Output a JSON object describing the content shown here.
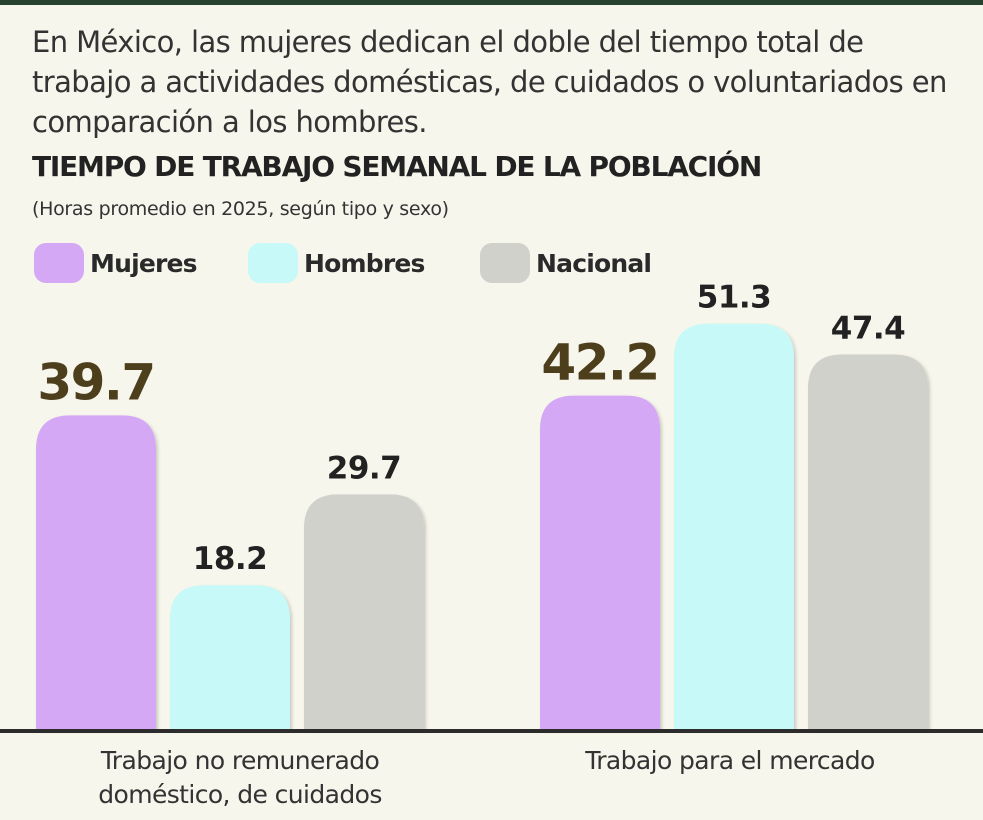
{
  "intro": "En México, las mujeres dedican el doble del tiempo total de trabajo a actividades domésticas, de cuidados o voluntariados en comparación a los hombres.",
  "colors": {
    "background": "#f7f6ec",
    "rule": "#27432f",
    "mujeres": "#d4a8f5",
    "hombres": "#c6f9f7",
    "nacional": "#cfd1ca",
    "highlight_label": "#4d3e1c",
    "label": "#222222"
  },
  "legend": [
    {
      "name": "Mujeres",
      "color": "#d4a8f5"
    },
    {
      "name": "Hombres",
      "color": "#c6f9f7"
    },
    {
      "name": "Nacional",
      "color": "#cfd1ca"
    }
  ],
  "chart_data": {
    "type": "bar",
    "title": "TIEMPO DE TRABAJO SEMANAL DE LA POBLACIÓN",
    "subtitle": "(Horas promedio en 2025, según tipo y sexo)",
    "categories": [
      "Trabajo no remunerado doméstico, de cuidados",
      "Trabajo para el mercado"
    ],
    "series": [
      {
        "name": "Mujeres",
        "values": [
          39.7,
          42.2
        ]
      },
      {
        "name": "Hombres",
        "values": [
          18.2,
          51.3
        ]
      },
      {
        "name": "Nacional",
        "values": [
          29.7,
          47.4
        ]
      }
    ],
    "value_labels": [
      [
        "39.7",
        "18.2",
        "29.7"
      ],
      [
        "42.2",
        "51.3",
        "47.4"
      ]
    ],
    "xlabel": "",
    "ylabel": "",
    "ylim": [
      0,
      51.3
    ],
    "grid": false,
    "legend_position": "top-left"
  },
  "category_labels": [
    {
      "line1": "Trabajo no remunerado",
      "line2": "doméstico, de cuidados"
    },
    {
      "line1": "Trabajo para el mercado",
      "line2": ""
    }
  ]
}
